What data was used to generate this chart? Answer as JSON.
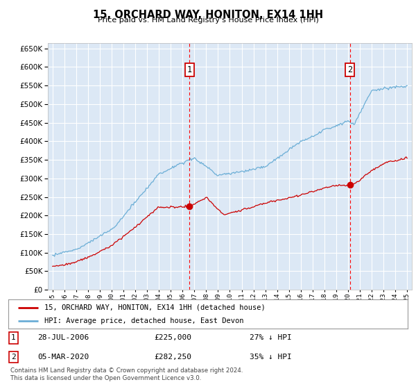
{
  "title": "15, ORCHARD WAY, HONITON, EX14 1HH",
  "subtitle": "Price paid vs. HM Land Registry's House Price Index (HPI)",
  "ylabel_ticks": [
    0,
    50000,
    100000,
    150000,
    200000,
    250000,
    300000,
    350000,
    400000,
    450000,
    500000,
    550000,
    600000,
    650000
  ],
  "xlim_years": [
    1994.6,
    2025.4
  ],
  "ylim": [
    0,
    665000
  ],
  "plot_bg": "#dce8f5",
  "grid_color": "#ffffff",
  "hpi_color": "#6baed6",
  "price_color": "#cc0000",
  "marker_color": "#cc0000",
  "point1_year": 2006.574,
  "point1_price": 225000,
  "point2_year": 2020.174,
  "point2_price": 282250,
  "legend_line1": "15, ORCHARD WAY, HONITON, EX14 1HH (detached house)",
  "legend_line2": "HPI: Average price, detached house, East Devon",
  "table_row1_date": "28-JUL-2006",
  "table_row1_price": "£225,000",
  "table_row1_pct": "27% ↓ HPI",
  "table_row2_date": "05-MAR-2020",
  "table_row2_price": "£282,250",
  "table_row2_pct": "35% ↓ HPI",
  "footnote": "Contains HM Land Registry data © Crown copyright and database right 2024.\nThis data is licensed under the Open Government Licence v3.0.",
  "xtick_years": [
    1995,
    1996,
    1997,
    1998,
    1999,
    2000,
    2001,
    2002,
    2003,
    2004,
    2005,
    2006,
    2007,
    2008,
    2009,
    2010,
    2011,
    2012,
    2013,
    2014,
    2015,
    2016,
    2017,
    2018,
    2019,
    2020,
    2021,
    2022,
    2023,
    2024,
    2025
  ]
}
